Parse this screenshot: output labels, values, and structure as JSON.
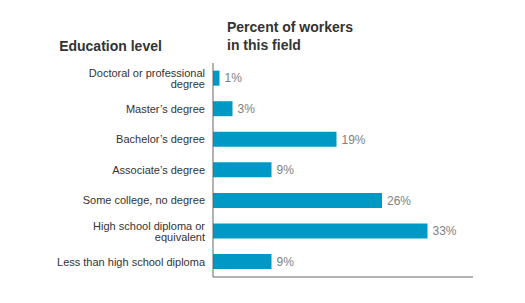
{
  "chart_data": {
    "type": "bar",
    "orientation": "horizontal",
    "ylabel": "Education level",
    "xlabel": "Percent of workers\nin this field",
    "categories": [
      "Doctoral or professional degree",
      "Master’s degree",
      "Bachelor’s degree",
      "Associate’s degree",
      "Some college, no degree",
      "High school diploma or equivalent",
      "Less than high school diploma"
    ],
    "values": [
      1,
      3,
      19,
      9,
      26,
      33,
      9
    ],
    "value_labels": [
      "1%",
      "3%",
      "19%",
      "9%",
      "26%",
      "33%",
      "9%"
    ],
    "data_labels": true,
    "color": "#0099c6",
    "xlim": [
      0,
      40
    ],
    "tick_labels": "y",
    "grid": false
  }
}
